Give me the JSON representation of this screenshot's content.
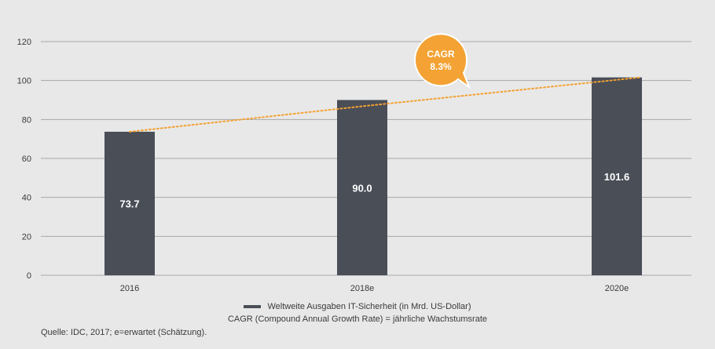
{
  "chart_data": {
    "type": "bar",
    "categories": [
      "2016",
      "2018e",
      "2020e"
    ],
    "values": [
      73.7,
      90.0,
      101.6
    ],
    "value_labels": [
      "73.7",
      "90.0",
      "101.6"
    ],
    "ylim": [
      0,
      120
    ],
    "yticks": [
      0,
      20,
      40,
      60,
      80,
      100,
      120
    ],
    "trend": {
      "type": "line",
      "style": "dotted",
      "values": [
        73.7,
        90.0,
        101.6
      ]
    },
    "annotation": {
      "title": "CAGR",
      "value": "8.3%"
    },
    "legend": {
      "series": "Weltweite Ausgaben IT-Sicherheit (in Mrd. US-Dollar)",
      "note": "CAGR (Compound Annual Growth Rate) = jährliche Wachstumsrate"
    },
    "source": "Quelle: IDC, 2017; e=erwartet (Schätzung).",
    "colors": {
      "bar": "#4a4e57",
      "trend": "#f3a233",
      "callout": "#f3a233",
      "grid": "#a9a9a9"
    }
  }
}
